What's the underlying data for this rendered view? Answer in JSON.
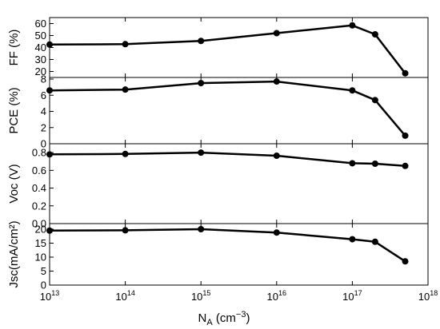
{
  "chart_data": [
    {
      "type": "line",
      "ylabel": "FF (%)",
      "ylim": [
        15,
        65
      ],
      "yticks": [
        "20",
        "30",
        "40",
        "50",
        "60"
      ],
      "xscale": "log",
      "xlim": [
        10000000000000.0,
        1e+18
      ],
      "x": [
        10000000000000.0,
        100000000000000.0,
        1000000000000000.0,
        1e+16,
        1e+17,
        2e+17,
        5e+17
      ],
      "values": [
        42.5,
        42.8,
        45.5,
        52,
        58.5,
        51,
        18.5
      ],
      "grid": false
    },
    {
      "type": "line",
      "ylabel": "PCE (%)",
      "ylim": [
        0,
        8.2
      ],
      "yticks": [
        "0",
        "2",
        "4",
        "6",
        "8"
      ],
      "xscale": "log",
      "xlim": [
        10000000000000.0,
        1e+18
      ],
      "x": [
        10000000000000.0,
        100000000000000.0,
        1000000000000000.0,
        1e+16,
        1e+17,
        2e+17,
        5e+17
      ],
      "values": [
        6.6,
        6.7,
        7.5,
        7.7,
        6.6,
        5.4,
        1.0
      ],
      "grid": false
    },
    {
      "type": "line",
      "ylabel": "Voc (V)",
      "ylim": [
        0,
        0.9
      ],
      "yticks": [
        "0.0",
        "0.2",
        "0.4",
        "0.6",
        "0.8"
      ],
      "xscale": "log",
      "xlim": [
        10000000000000.0,
        1e+18
      ],
      "x": [
        10000000000000.0,
        100000000000000.0,
        1000000000000000.0,
        1e+16,
        1e+17,
        2e+17,
        5e+17
      ],
      "values": [
        0.78,
        0.785,
        0.8,
        0.765,
        0.68,
        0.675,
        0.65
      ],
      "grid": false
    },
    {
      "type": "line",
      "ylabel": "Jsc(mA/cm²)",
      "ylim": [
        0,
        22
      ],
      "yticks": [
        "0",
        "5",
        "10",
        "15",
        "20"
      ],
      "xscale": "log",
      "xlim": [
        10000000000000.0,
        1e+18
      ],
      "x": [
        10000000000000.0,
        100000000000000.0,
        1000000000000000.0,
        1e+16,
        1e+17,
        2e+17,
        5e+17
      ],
      "values": [
        19.5,
        19.6,
        20.0,
        18.8,
        16.4,
        15.5,
        8.5
      ],
      "grid": false
    }
  ],
  "x_axis": {
    "xlabel": "N",
    "xlabel_sub": "A",
    "xlabel_unit_pre": " (cm",
    "xlabel_unit_sup": "−3",
    "xlabel_unit_post": ")",
    "ticks": [
      {
        "base": "10",
        "exp": "13"
      },
      {
        "base": "10",
        "exp": "14"
      },
      {
        "base": "10",
        "exp": "15"
      },
      {
        "base": "10",
        "exp": "16"
      },
      {
        "base": "10",
        "exp": "17"
      },
      {
        "base": "10",
        "exp": "18"
      }
    ]
  },
  "style": {
    "line_color": "#000000",
    "background": "#ffffff"
  }
}
